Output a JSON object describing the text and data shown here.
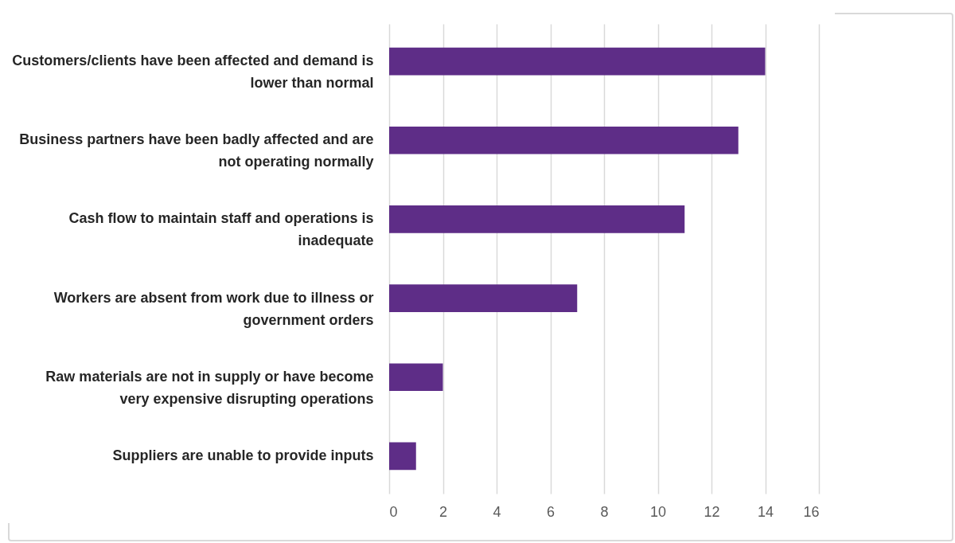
{
  "chart_data": {
    "type": "bar",
    "orientation": "horizontal",
    "categories": [
      "Customers/clients have been affected and demand is lower than normal",
      "Business partners have been badly affected and are not operating normally",
      "Cash flow to maintain staff and operations is inadequate",
      "Workers are absent from work due to illness or government orders",
      "Raw materials are not in supply or have become very expensive disrupting operations",
      "Suppliers are unable to provide inputs"
    ],
    "values": [
      14,
      13,
      11,
      7,
      2,
      1
    ],
    "color": "#5e2d87",
    "xlim": [
      0,
      16
    ],
    "xticks": [
      0,
      2,
      4,
      6,
      8,
      10,
      12,
      14,
      16
    ],
    "grid": "x"
  }
}
